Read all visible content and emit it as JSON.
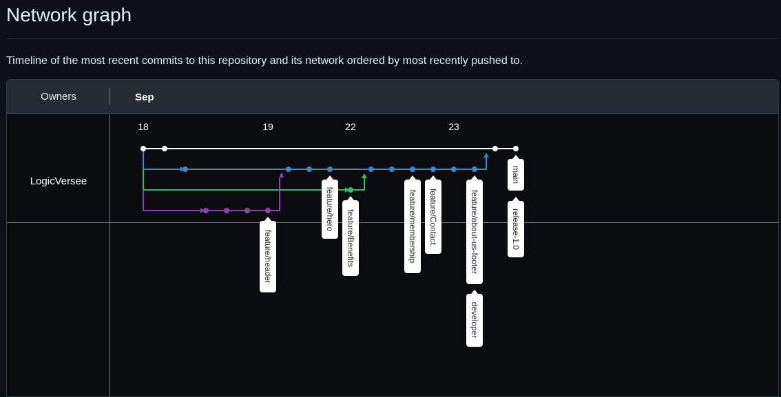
{
  "page": {
    "title": "Network graph",
    "description": "Timeline of the most recent commits to this repository and its network ordered by most recently pushed to."
  },
  "header": {
    "owners_label": "Owners",
    "month_label": "Sep"
  },
  "owner": {
    "name": "LogicVersee"
  },
  "dates": [
    "18",
    "19",
    "22",
    "23"
  ],
  "colors": {
    "white_branch": "#ffffff",
    "blue_branch": "#3b87c8",
    "green_branch": "#2fbd68",
    "purple_branch": "#8e44ad"
  },
  "tags": {
    "main": "main",
    "release": "release-1.0",
    "feature_header": "feature/header",
    "feature_hero": "feature/hero",
    "feature_benefits": "feature/Benefits",
    "feature_membership": "feature/membership",
    "feature_contact": "feature/Contact",
    "feature_about": "feature/about-us-footer",
    "developer": "developer"
  }
}
